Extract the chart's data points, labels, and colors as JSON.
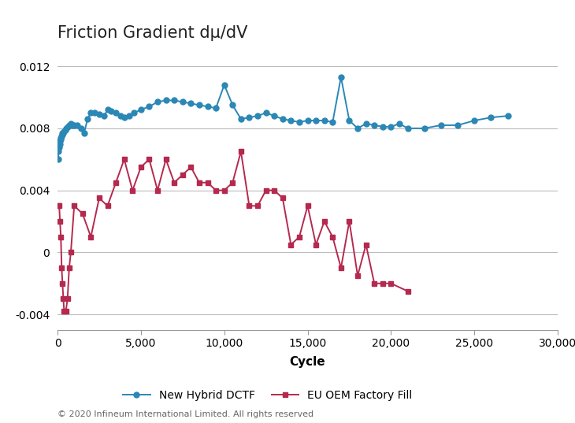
{
  "title": "Friction Gradient dμ/dV",
  "xlabel": "Cycle",
  "xlim": [
    0,
    30000
  ],
  "ylim": [
    -0.005,
    0.013
  ],
  "yticks": [
    -0.004,
    0.0,
    0.004,
    0.008,
    0.012
  ],
  "xticks": [
    0,
    5000,
    10000,
    15000,
    20000,
    25000,
    30000
  ],
  "grid_color": "#bbbbbb",
  "background_color": "#ffffff",
  "series1_label": "New Hybrid DCTF",
  "series1_color": "#2b87b5",
  "series1_marker": "o",
  "series1_x": [
    30,
    60,
    90,
    120,
    150,
    180,
    210,
    240,
    270,
    300,
    350,
    400,
    450,
    500,
    600,
    700,
    800,
    900,
    1000,
    1200,
    1400,
    1600,
    1800,
    2000,
    2200,
    2500,
    2800,
    3000,
    3200,
    3500,
    3800,
    4000,
    4300,
    4600,
    5000,
    5500,
    6000,
    6500,
    7000,
    7500,
    8000,
    8500,
    9000,
    9500,
    10000,
    10500,
    11000,
    11500,
    12000,
    12500,
    13000,
    13500,
    14000,
    14500,
    15000,
    15500,
    16000,
    16500,
    17000,
    17500,
    18000,
    18500,
    19000,
    19500,
    20000,
    20500,
    21000,
    22000,
    23000,
    24000,
    25000,
    26000,
    27000
  ],
  "series1_y": [
    0.006,
    0.0065,
    0.0068,
    0.007,
    0.0072,
    0.0073,
    0.0074,
    0.0075,
    0.0076,
    0.0077,
    0.0077,
    0.0078,
    0.0079,
    0.008,
    0.0081,
    0.0082,
    0.0083,
    0.0082,
    0.0082,
    0.0082,
    0.008,
    0.0077,
    0.0086,
    0.009,
    0.009,
    0.0089,
    0.0088,
    0.0092,
    0.0091,
    0.009,
    0.0088,
    0.0087,
    0.0088,
    0.009,
    0.0092,
    0.0094,
    0.0097,
    0.0098,
    0.0098,
    0.0097,
    0.0096,
    0.0095,
    0.0094,
    0.0093,
    0.0108,
    0.0095,
    0.0086,
    0.0087,
    0.0088,
    0.009,
    0.0088,
    0.0086,
    0.0085,
    0.0084,
    0.0085,
    0.0085,
    0.0085,
    0.0084,
    0.0113,
    0.0085,
    0.008,
    0.0083,
    0.0082,
    0.0081,
    0.0081,
    0.0083,
    0.008,
    0.008,
    0.0082,
    0.0082,
    0.0085,
    0.0087,
    0.0088
  ],
  "series2_label": "EU OEM Factory Fill",
  "series2_color": "#b5294e",
  "series2_marker": "s",
  "series2_x": [
    50,
    100,
    150,
    200,
    250,
    300,
    350,
    400,
    500,
    600,
    700,
    800,
    1000,
    1500,
    2000,
    2500,
    3000,
    3500,
    4000,
    4500,
    5000,
    5500,
    6000,
    6500,
    7000,
    7500,
    8000,
    8500,
    9000,
    9500,
    10000,
    10500,
    11000,
    11500,
    12000,
    12500,
    13000,
    13500,
    14000,
    14500,
    15000,
    15500,
    16000,
    16500,
    17000,
    17500,
    18000,
    18500,
    19000,
    19500,
    20000,
    21000
  ],
  "series2_y": [
    0.003,
    0.003,
    0.002,
    0.001,
    -0.001,
    -0.002,
    -0.003,
    -0.0038,
    -0.0038,
    -0.003,
    -0.001,
    0.0,
    0.003,
    0.0025,
    0.001,
    0.0035,
    0.003,
    0.0045,
    0.006,
    0.004,
    0.0055,
    0.006,
    0.004,
    0.006,
    0.0045,
    0.005,
    0.0055,
    0.0045,
    0.0045,
    0.004,
    0.004,
    0.0045,
    0.0065,
    0.003,
    0.003,
    0.004,
    0.004,
    0.0035,
    0.0005,
    0.001,
    0.003,
    0.0005,
    0.002,
    0.001,
    -0.001,
    0.002,
    -0.0015,
    0.0005,
    -0.002,
    -0.002,
    -0.002,
    -0.0025
  ],
  "footer": "© 2020 Infineum International Limited. All rights reserved",
  "title_fontsize": 15,
  "axis_label_fontsize": 11,
  "tick_fontsize": 10,
  "legend_fontsize": 10,
  "footer_fontsize": 8
}
